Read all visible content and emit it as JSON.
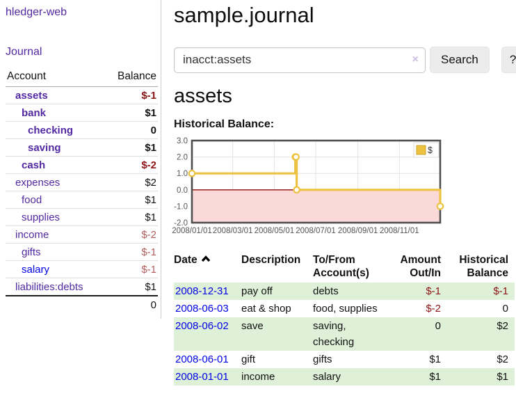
{
  "app_title": "hledger-web",
  "colors": {
    "link_purple": "#5229a3",
    "link_blue": "#0000e6",
    "negative": "#8b1414",
    "negative_muted": "#b25d5d",
    "row_stripe_green": "#dff0d8",
    "chart_line_yellow": "#edc240",
    "chart_negative_fill": "#fbd9d9",
    "chart_zero_line": "#8b1010"
  },
  "sidebar": {
    "journal_link": "Journal",
    "account_header": "Account",
    "balance_header": "Balance",
    "rows": [
      {
        "label": "assets",
        "indent": 1,
        "bold": true,
        "link_color": "purple",
        "value": "$-1",
        "value_color": "negative",
        "value_bold": true
      },
      {
        "label": "bank",
        "indent": 2,
        "bold": true,
        "link_color": "purple",
        "value": "$1",
        "value_color": "normal",
        "value_bold": true
      },
      {
        "label": "checking",
        "indent": 3,
        "bold": true,
        "link_color": "purple",
        "value": "0",
        "value_color": "normal",
        "value_bold": true
      },
      {
        "label": "saving",
        "indent": 3,
        "bold": true,
        "link_color": "purple",
        "value": "$1",
        "value_color": "normal",
        "value_bold": true
      },
      {
        "label": "cash",
        "indent": 2,
        "bold": true,
        "link_color": "purple",
        "value": "$-2",
        "value_color": "negative",
        "value_bold": true
      },
      {
        "label": "expenses",
        "indent": 1,
        "bold": false,
        "link_color": "purple",
        "value": "$2",
        "value_color": "normal",
        "value_bold": false
      },
      {
        "label": "food",
        "indent": 2,
        "bold": false,
        "link_color": "purple",
        "value": "$1",
        "value_color": "normal",
        "value_bold": false
      },
      {
        "label": "supplies",
        "indent": 2,
        "bold": false,
        "link_color": "purple",
        "value": "$1",
        "value_color": "normal",
        "value_bold": false
      },
      {
        "label": "income",
        "indent": 1,
        "bold": false,
        "link_color": "purple",
        "value": "$-2",
        "value_color": "negative-muted",
        "value_bold": false
      },
      {
        "label": "gifts",
        "indent": 2,
        "bold": false,
        "link_color": "purple",
        "value": "$-1",
        "value_color": "negative-muted",
        "value_bold": false
      },
      {
        "label": "salary",
        "indent": 2,
        "bold": false,
        "link_color": "blue",
        "value": "$-1",
        "value_color": "negative-muted",
        "value_bold": false
      },
      {
        "label": "liabilities:debts",
        "indent": 1,
        "bold": false,
        "link_color": "purple",
        "value": "$1",
        "value_color": "normal",
        "value_bold": false
      }
    ],
    "total": "0"
  },
  "main": {
    "page_title": "sample.journal",
    "search": {
      "value": "inacct:assets",
      "clear_icon": "×",
      "search_button": "Search",
      "help_button": "?"
    },
    "account_heading": "assets",
    "chart_heading": "Historical Balance:"
  },
  "chart_data": {
    "type": "line",
    "step": true,
    "title": "Historical Balance:",
    "series": [
      {
        "name": "$",
        "color": "#edc240",
        "points": [
          [
            "2008-01-01",
            1
          ],
          [
            "2008-06-01",
            2
          ],
          [
            "2008-06-02",
            2
          ],
          [
            "2008-06-03",
            0
          ],
          [
            "2008-12-31",
            -1
          ]
        ]
      }
    ],
    "xlim": [
      "2008-01-01",
      "2008-12-31"
    ],
    "ylim": [
      -2,
      3
    ],
    "yticks": [
      "3.0",
      "2.0",
      "1.0",
      "0.0",
      "-1.0",
      "-2.0"
    ],
    "xticks": [
      {
        "date": "2008-01-01",
        "label": "2008/01/01"
      },
      {
        "date": "2008-03-01",
        "label": "2008/03/01"
      },
      {
        "date": "2008-05-01",
        "label": "2008/05/01"
      },
      {
        "date": "2008-07-01",
        "label": "2008/07/01"
      },
      {
        "date": "2008-09-01",
        "label": "2008/09/01"
      },
      {
        "date": "2008-11-01",
        "label": "2008/11/01"
      }
    ],
    "grid": true,
    "legend": {
      "position": "top-right",
      "label": "$"
    },
    "negative_region_fill": "#fbd9d9",
    "zero_line_color": "#8b1010"
  },
  "transactions": {
    "headers": {
      "date": "Date",
      "description": "Description",
      "accounts": "To/From Account(s)",
      "amount": "Amount Out/In",
      "balance": "Historical Balance"
    },
    "sort_icon": "chevron-up",
    "rows": [
      {
        "date": "2008-12-31",
        "description": "pay off",
        "accounts": "debts",
        "amount": "$-1",
        "amount_negative": true,
        "balance": "$-1",
        "balance_negative": true,
        "shaded": true
      },
      {
        "date": "2008-06-03",
        "description": "eat & shop",
        "accounts": "food, supplies",
        "amount": "$-2",
        "amount_negative": true,
        "balance": "0",
        "balance_negative": false,
        "shaded": false
      },
      {
        "date": "2008-06-02",
        "description": "save",
        "accounts": "saving,\nchecking",
        "amount": "0",
        "amount_negative": false,
        "balance": "$2",
        "balance_negative": false,
        "shaded": true
      },
      {
        "date": "2008-06-01",
        "description": "gift",
        "accounts": "gifts",
        "amount": "$1",
        "amount_negative": false,
        "balance": "$2",
        "balance_negative": false,
        "shaded": false
      },
      {
        "date": "2008-01-01",
        "description": "income",
        "accounts": "salary",
        "amount": "$1",
        "amount_negative": false,
        "balance": "$1",
        "balance_negative": false,
        "shaded": true
      }
    ]
  }
}
